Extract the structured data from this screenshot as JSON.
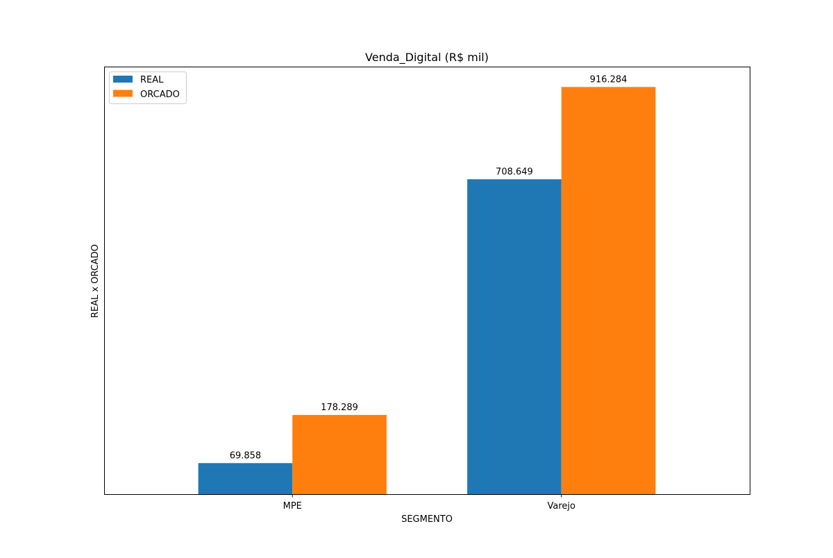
{
  "chart_data": {
    "type": "bar",
    "title": "Venda_Digital (R$ mil)",
    "xlabel": "SEGMENTO",
    "ylabel": "REAL x ORCADO",
    "categories": [
      "MPE",
      "Varejo"
    ],
    "series": [
      {
        "name": "REAL",
        "color": "#1f77b4",
        "values": [
          69.858,
          708.649
        ],
        "labels": [
          "69.858",
          "708.649"
        ]
      },
      {
        "name": "ORCADO",
        "color": "#ff7f0e",
        "values": [
          178.289,
          916.284
        ],
        "labels": [
          "178.289",
          "916.284"
        ]
      }
    ],
    "ylim": [
      0,
      962.1
    ],
    "y_ticks_visible": false,
    "grid": false,
    "legend": "top-left"
  }
}
